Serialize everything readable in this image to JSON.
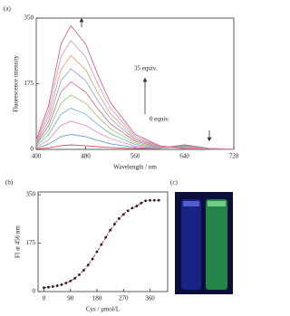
{
  "chart_data": [
    {
      "type": "line",
      "label": "(a)",
      "xlabel": "Wavelength / nm",
      "ylabel": "Fluorescence intensity",
      "annotations": [
        "35 equiv.",
        "0 equiv."
      ],
      "x": [
        400,
        420,
        440,
        456,
        480,
        500,
        520,
        560,
        600,
        640,
        680,
        720
      ],
      "xlim": [
        400,
        720
      ],
      "xticks": [
        400,
        480,
        560,
        640,
        720
      ],
      "ylim": [
        0,
        350
      ],
      "yticks": [
        0,
        175,
        350
      ],
      "series": [
        {
          "color": "#e05050",
          "values": [
            1,
            4,
            10,
            12,
            10,
            7,
            5,
            2,
            3,
            12,
            3,
            0
          ]
        },
        {
          "color": "#6a9ad8",
          "values": [
            3,
            14,
            34,
            40,
            34,
            24,
            15,
            5,
            3,
            10,
            3,
            0
          ]
        },
        {
          "color": "#e890b0",
          "values": [
            6,
            26,
            64,
            75,
            64,
            45,
            29,
            9,
            3,
            8,
            2,
            0
          ]
        },
        {
          "color": "#70b8c8",
          "values": [
            9,
            39,
            94,
            110,
            94,
            66,
            42,
            13,
            4,
            7,
            2,
            0
          ]
        },
        {
          "color": "#a0c878",
          "values": [
            12,
            51,
            123,
            145,
            123,
            87,
            55,
            17,
            5,
            6,
            2,
            0
          ]
        },
        {
          "color": "#d07890",
          "values": [
            14,
            63,
            153,
            180,
            153,
            108,
            68,
            22,
            6,
            5,
            1,
            0
          ]
        },
        {
          "color": "#90a8e0",
          "values": [
            17,
            75,
            183,
            215,
            183,
            129,
            82,
            26,
            7,
            4,
            1,
            0
          ]
        },
        {
          "color": "#e8a070",
          "values": [
            20,
            88,
            213,
            250,
            213,
            150,
            95,
            30,
            8,
            3,
            1,
            0
          ]
        },
        {
          "color": "#c8a0d0",
          "values": [
            23,
            102,
            247,
            290,
            247,
            174,
            110,
            35,
            9,
            2,
            1,
            0
          ]
        },
        {
          "color": "#e06080",
          "values": [
            26,
            116,
            281,
            330,
            281,
            198,
            125,
            40,
            10,
            2,
            1,
            0
          ]
        }
      ]
    },
    {
      "type": "scatter",
      "label": "(b)",
      "xlabel": "Cys / μmol/L",
      "ylabel": "FI at 456 nm",
      "x": [
        0,
        15,
        30,
        45,
        60,
        75,
        90,
        105,
        120,
        135,
        150,
        165,
        180,
        195,
        210,
        225,
        240,
        255,
        270,
        285,
        300,
        315,
        330,
        345,
        360,
        375,
        390
      ],
      "values": [
        14,
        16,
        18,
        21,
        25,
        31,
        38,
        48,
        61,
        77,
        96,
        118,
        144,
        170,
        196,
        222,
        244,
        264,
        279,
        292,
        302,
        309,
        320,
        328,
        330,
        330,
        330
      ],
      "color": "#222222",
      "fit_color": "#d03030",
      "xlim": [
        -20,
        420
      ],
      "xticks": [
        0,
        90,
        180,
        270,
        360
      ],
      "ylim": [
        0,
        360
      ],
      "yticks": [
        0,
        175,
        350
      ]
    }
  ],
  "photo": {
    "label": "(c)"
  }
}
